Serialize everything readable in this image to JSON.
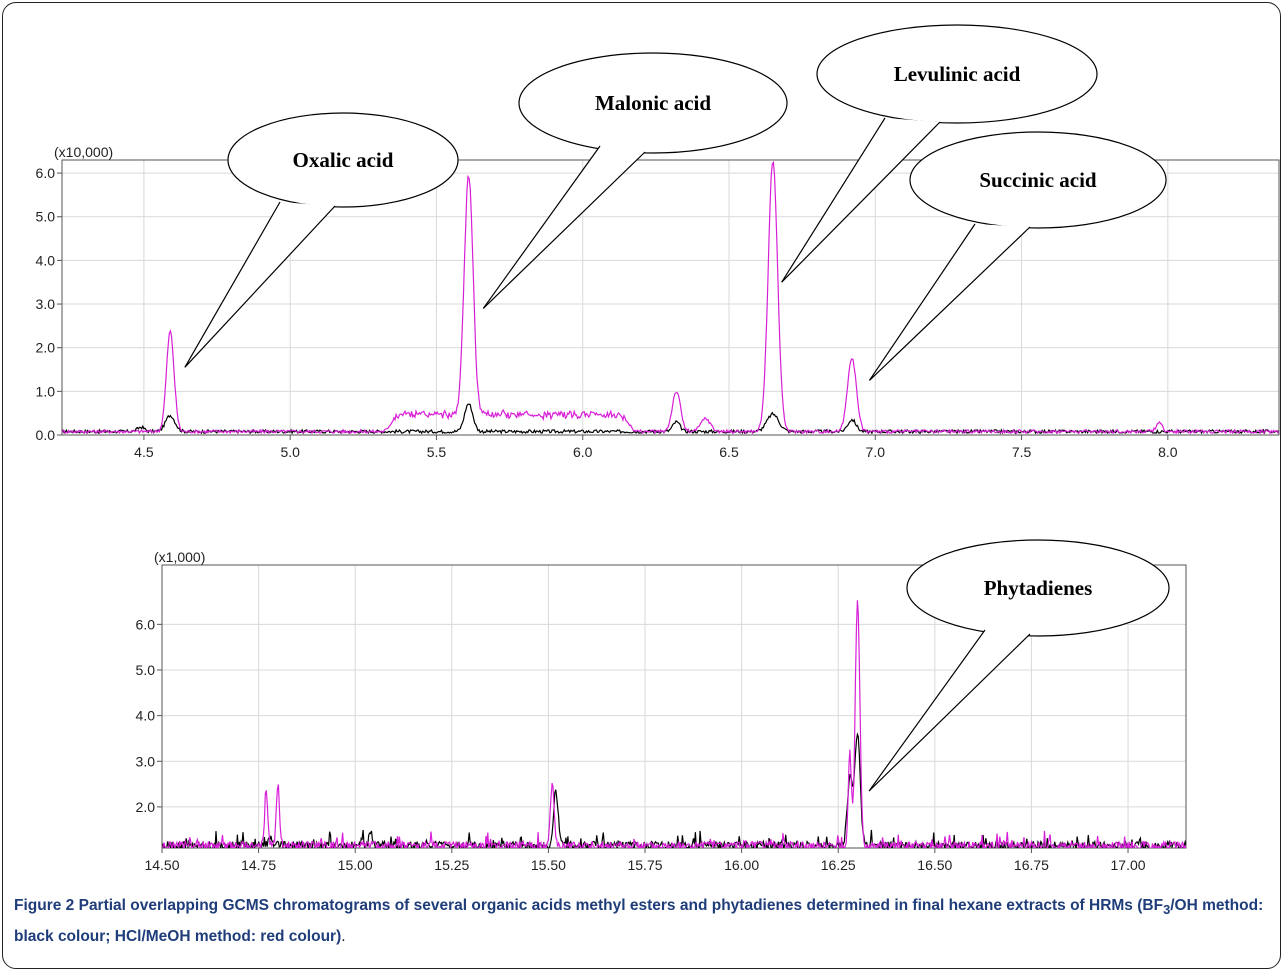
{
  "caption": {
    "label": "Figure 2",
    "text_a": " Partial overlapping GCMS chromatograms of several organic acids methyl esters and phytadienes determined in final hexane extracts of HRMs (BF",
    "sub": "3",
    "text_b": "/OH method: black colour; HCl/MeOH method: red colour)",
    "tail": "."
  },
  "colors": {
    "black_series": "#000000",
    "magenta_series": "#d81fd8",
    "grid": "#d9d9d9",
    "axis": "#555555"
  },
  "chart_data": [
    {
      "type": "line",
      "multiplier_label": "(x10,000)",
      "xlim": [
        4.22,
        8.38
      ],
      "ylim": [
        0.0,
        6.3
      ],
      "grid": true,
      "x_ticks": [
        4.5,
        5.0,
        5.5,
        6.0,
        6.5,
        7.0,
        7.5,
        8.0
      ],
      "x_tick_labels": [
        "4.5",
        "5.0",
        "5.5",
        "6.0",
        "6.5",
        "7.0",
        "7.5",
        "8.0"
      ],
      "y_ticks": [
        0.0,
        1.0,
        2.0,
        3.0,
        4.0,
        5.0,
        6.0
      ],
      "y_tick_labels": [
        "0.0",
        "1.0",
        "2.0",
        "3.0",
        "4.0",
        "5.0",
        "6.0"
      ],
      "baseline": 0.08,
      "series": [
        {
          "color": "#000000",
          "peaks": [
            [
              4.49,
              0.18,
              0.012
            ],
            [
              4.59,
              0.45,
              0.016
            ],
            [
              5.61,
              0.72,
              0.014
            ],
            [
              6.32,
              0.3,
              0.012
            ],
            [
              6.65,
              0.48,
              0.02
            ],
            [
              6.92,
              0.35,
              0.014
            ]
          ]
        },
        {
          "color": "#d81fd8",
          "peaks": [
            [
              4.59,
              2.38,
              0.013
            ],
            [
              5.61,
              5.55,
              0.015
            ],
            [
              6.32,
              1.0,
              0.014
            ],
            [
              6.42,
              0.38,
              0.016
            ],
            [
              6.65,
              6.3,
              0.016
            ],
            [
              6.92,
              1.78,
              0.015
            ],
            [
              7.97,
              0.3,
              0.01
            ]
          ],
          "hump": [
            5.32,
            6.18,
            0.42
          ]
        }
      ],
      "annotations": [
        {
          "text": "Oxalic acid",
          "peak_x": 4.64,
          "peak_y": 1.55
        },
        {
          "text": "Malonic acid",
          "peak_x": 5.66,
          "peak_y": 2.9
        },
        {
          "text": "Levulinic acid",
          "peak_x": 6.68,
          "peak_y": 3.5
        },
        {
          "text": "Succinic acid",
          "peak_x": 6.98,
          "peak_y": 1.25
        }
      ]
    },
    {
      "type": "line",
      "multiplier_label": "(x1,000)",
      "xlim": [
        14.5,
        17.15
      ],
      "ylim": [
        1.1,
        7.3
      ],
      "grid": true,
      "x_ticks": [
        14.5,
        14.75,
        15.0,
        15.25,
        15.5,
        15.75,
        16.0,
        16.25,
        16.5,
        16.75,
        17.0
      ],
      "x_tick_labels": [
        "14.50",
        "14.75",
        "15.00",
        "15.25",
        "15.50",
        "15.75",
        "16.00",
        "16.25",
        "16.50",
        "16.75",
        "17.00"
      ],
      "y_ticks": [
        2.0,
        3.0,
        4.0,
        5.0,
        6.0
      ],
      "y_tick_labels": [
        "2.0",
        "3.0",
        "4.0",
        "5.0",
        "6.0"
      ],
      "baseline": 1.15,
      "series": [
        {
          "color": "#000000",
          "peaks": [
            [
              14.78,
              1.3,
              0.006
            ],
            [
              15.04,
              1.5,
              0.004
            ],
            [
              15.52,
              2.3,
              0.006
            ],
            [
              16.28,
              2.6,
              0.007
            ],
            [
              16.3,
              3.55,
              0.007
            ]
          ]
        },
        {
          "color": "#d81fd8",
          "peaks": [
            [
              14.77,
              2.28,
              0.004
            ],
            [
              14.8,
              2.55,
              0.004
            ],
            [
              15.51,
              2.45,
              0.005
            ],
            [
              16.28,
              3.15,
              0.004
            ],
            [
              16.3,
              6.45,
              0.006
            ]
          ]
        }
      ],
      "annotations": [
        {
          "text": "Phytadienes",
          "peak_x": 16.33,
          "peak_y": 2.35
        }
      ]
    }
  ]
}
